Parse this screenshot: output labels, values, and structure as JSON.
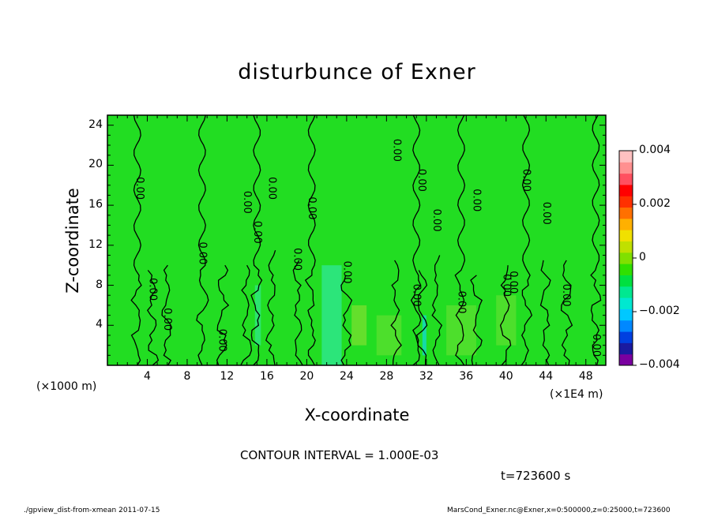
{
  "chart_data": {
    "type": "heatmap",
    "title": "disturbunce of Exner",
    "xlabel": "X-coordinate",
    "ylabel": "Z-coordinate",
    "x_scale_label": "(×1000 m)",
    "x_scale_label_right": "(×1E4 m)",
    "xlim": [
      0,
      50
    ],
    "ylim": [
      0,
      25
    ],
    "x_ticks": [
      "4",
      "8",
      "12",
      "16",
      "20",
      "24",
      "28",
      "32",
      "36",
      "40",
      "44",
      "48"
    ],
    "y_ticks": [
      "4",
      "8",
      "12",
      "16",
      "20",
      "24"
    ],
    "colorbar": {
      "range": [
        -0.004,
        0.004
      ],
      "tick_labels": [
        "0.004",
        "0.002",
        "0",
        "−0.002",
        "−0.004"
      ],
      "colors": [
        "#7a00a0",
        "#1a1aa0",
        "#0040e0",
        "#0088ff",
        "#00c8ff",
        "#00e8d0",
        "#00e890",
        "#00e040",
        "#30e000",
        "#80e000",
        "#c0e000",
        "#f0e000",
        "#ffb000",
        "#ff7000",
        "#ff3000",
        "#ff0000",
        "#ff5060",
        "#ff9090",
        "#ffc0c0"
      ]
    },
    "background_color": "#22dd22",
    "contour_labels": [
      {
        "text": "0.00",
        "x": 3.2,
        "z": 17.7
      },
      {
        "text": "0.00",
        "x": 4.5,
        "z": 7.6
      },
      {
        "text": "0.00",
        "x": 6.0,
        "z": 4.6
      },
      {
        "text": "0.00",
        "x": 9.5,
        "z": 11.2
      },
      {
        "text": "0.00",
        "x": 11.5,
        "z": 2.5
      },
      {
        "text": "0.00",
        "x": 14.0,
        "z": 16.3
      },
      {
        "text": "0.00",
        "x": 15.0,
        "z": 13.3
      },
      {
        "text": "0.00",
        "x": 16.5,
        "z": 17.7
      },
      {
        "text": "0.00",
        "x": 19.0,
        "z": 10.6
      },
      {
        "text": "0.00",
        "x": 20.5,
        "z": 15.7
      },
      {
        "text": "0.00",
        "x": 24.0,
        "z": 9.3
      },
      {
        "text": "0.00",
        "x": 29.0,
        "z": 21.5
      },
      {
        "text": "0.00",
        "x": 31.0,
        "z": 7.0
      },
      {
        "text": "0.00",
        "x": 31.5,
        "z": 18.5
      },
      {
        "text": "0.00",
        "x": 33.0,
        "z": 14.5
      },
      {
        "text": "0.00",
        "x": 35.5,
        "z": 6.3
      },
      {
        "text": "0.00",
        "x": 37.0,
        "z": 16.5
      },
      {
        "text": "0.00",
        "x": 40.0,
        "z": 8.0
      },
      {
        "text": "0.00",
        "x": 40.7,
        "z": 8.3
      },
      {
        "text": "0.00",
        "x": 42.0,
        "z": 18.5
      },
      {
        "text": "0.00",
        "x": 44.0,
        "z": 15.2
      },
      {
        "text": "0.00",
        "x": 46.0,
        "z": 7.0
      },
      {
        "text": "0.00",
        "x": 49.0,
        "z": 2.0
      }
    ]
  },
  "contour_interval": "CONTOUR INTERVAL = 1.000E-03",
  "time_label": "t=723600 s",
  "footer_left": "./gpview_dist-from-xmean  2011-07-15",
  "footer_right": "MarsCond_Exner.nc@Exner,x=0:500000,z=0:25000,t=723600"
}
